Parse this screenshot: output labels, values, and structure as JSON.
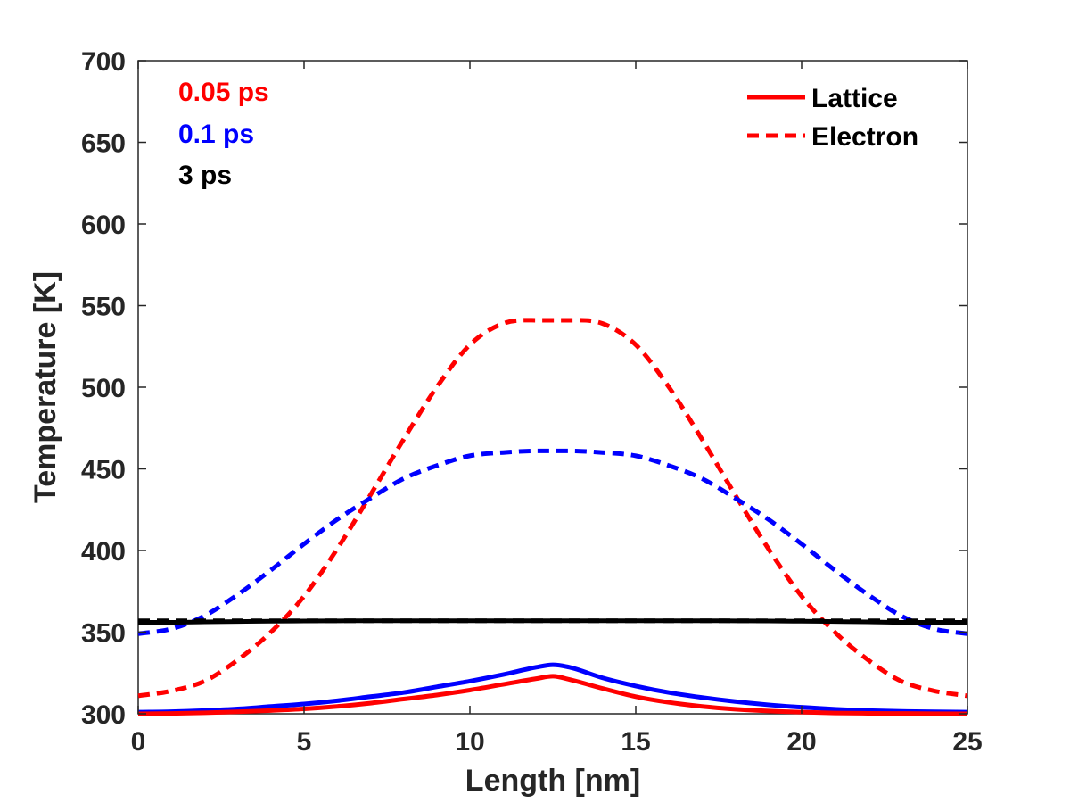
{
  "chart_data": {
    "type": "line",
    "title": "",
    "xlabel": "Length [nm]",
    "ylabel": "Temperature [K]",
    "xlim": [
      0,
      25
    ],
    "ylim": [
      300,
      700
    ],
    "xticks": [
      0,
      5,
      10,
      15,
      20,
      25
    ],
    "yticks": [
      300,
      350,
      400,
      450,
      500,
      550,
      600,
      650,
      700
    ],
    "grid": false,
    "legend": {
      "position": "top-right",
      "entries": [
        {
          "label": "Lattice",
          "style": "solid",
          "color": "#ff0000"
        },
        {
          "label": "Electron",
          "style": "dashed",
          "color": "#ff0000"
        }
      ]
    },
    "annotations": [
      {
        "text": "0.05 ps",
        "color": "#ff0000"
      },
      {
        "text": "0.1 ps",
        "color": "#0000ff"
      },
      {
        "text": "3 ps",
        "color": "#000000"
      }
    ],
    "x": [
      0,
      1,
      2,
      3,
      4,
      5,
      6,
      7,
      8,
      9,
      10,
      11,
      12,
      12.5,
      13,
      14,
      15,
      16,
      17,
      18,
      19,
      20,
      21,
      22,
      23,
      24,
      25
    ],
    "series": [
      {
        "name": "Electron 0.05 ps",
        "time": "0.05 ps",
        "kind": "Electron",
        "color": "#ff0000",
        "dash": true,
        "values": [
          311,
          314,
          320,
          333,
          350,
          372,
          401,
          434,
          468,
          500,
          526,
          539,
          541,
          541,
          541,
          539,
          526,
          500,
          468,
          434,
          401,
          372,
          350,
          333,
          320,
          314,
          311
        ]
      },
      {
        "name": "Electron 0.1 ps",
        "time": "0.1 ps",
        "kind": "Electron",
        "color": "#0000ff",
        "dash": true,
        "values": [
          349,
          352,
          360,
          373,
          388,
          404,
          419,
          432,
          444,
          452,
          458,
          460,
          461,
          461,
          461,
          460,
          458,
          452,
          444,
          432,
          419,
          404,
          388,
          373,
          360,
          352,
          349
        ]
      },
      {
        "name": "Electron 3 ps",
        "time": "3 ps",
        "kind": "Electron",
        "color": "#000000",
        "dash": true,
        "values": [
          357,
          357,
          357,
          357,
          357,
          357,
          357,
          357,
          357,
          357,
          357,
          357,
          357,
          357,
          357,
          357,
          357,
          357,
          357,
          357,
          357,
          357,
          357,
          357,
          357,
          357,
          357
        ]
      },
      {
        "name": "Lattice 3 ps",
        "time": "3 ps",
        "kind": "Lattice",
        "color": "#000000",
        "dash": false,
        "values": [
          356,
          356,
          356.3,
          356.5,
          356.7,
          356.8,
          356.9,
          357,
          357,
          357,
          357,
          357,
          357,
          357,
          357,
          357,
          357,
          357,
          357,
          356.9,
          356.8,
          356.7,
          356.5,
          356.3,
          356,
          356,
          356
        ]
      },
      {
        "name": "Lattice 0.1 ps",
        "time": "0.1 ps",
        "kind": "Lattice",
        "color": "#0000ff",
        "dash": false,
        "values": [
          301,
          301.3,
          302,
          303,
          304.5,
          306,
          308,
          310.5,
          313,
          316.5,
          320,
          324,
          328.5,
          330,
          328.5,
          322,
          317,
          313,
          310,
          307.5,
          305.5,
          304,
          302.8,
          302,
          301.5,
          301.2,
          301
        ]
      },
      {
        "name": "Lattice 0.05 ps",
        "time": "0.05 ps",
        "kind": "Lattice",
        "color": "#ff0000",
        "dash": false,
        "values": [
          300,
          300.2,
          300.6,
          301.2,
          302,
          303,
          304.5,
          306.5,
          309,
          311.5,
          314.5,
          318,
          321.5,
          323,
          321,
          315.5,
          310.5,
          307,
          304.5,
          302.8,
          301.7,
          301,
          300.5,
          300.3,
          300.2,
          300.1,
          300
        ]
      }
    ]
  }
}
